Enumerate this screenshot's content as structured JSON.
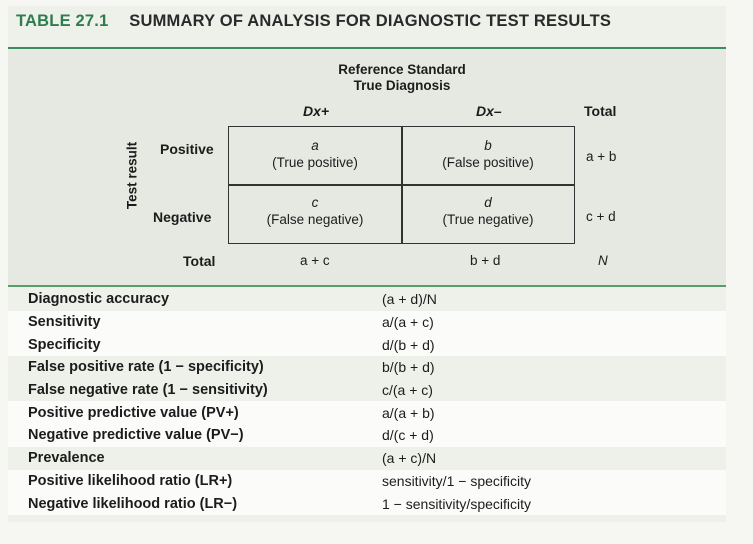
{
  "header": {
    "table_number": "TABLE 27.1",
    "title": "SUMMARY OF ANALYSIS FOR DIAGNOSTIC TEST RESULTS"
  },
  "contingency": {
    "reference_line1": "Reference Standard",
    "reference_line2": "True Diagnosis",
    "col_pos": "Dx+",
    "col_neg": "Dx–",
    "col_total": "Total",
    "side_label": "Test result",
    "row_pos": "Positive",
    "row_neg": "Negative",
    "row_total": "Total",
    "cells": {
      "a": {
        "letter": "a",
        "desc": "(True positive)"
      },
      "b": {
        "letter": "b",
        "desc": "(False positive)"
      },
      "c": {
        "letter": "c",
        "desc": "(False negative)"
      },
      "d": {
        "letter": "d",
        "desc": "(True negative)"
      }
    },
    "row_totals": {
      "pos": "a + b",
      "neg": "c + d"
    },
    "col_totals": {
      "pos": "a + c",
      "neg": "b + d",
      "all": "N"
    }
  },
  "measures": [
    {
      "name": "Diagnostic accuracy",
      "formula": "(a + d)/N"
    },
    {
      "name": "Sensitivity",
      "formula": "a/(a + c)"
    },
    {
      "name": "Specificity",
      "formula": "d/(b + d)"
    },
    {
      "name": "False positive rate (1 − specificity)",
      "formula": "b/(b + d)"
    },
    {
      "name": "False negative rate (1 − sensitivity)",
      "formula": "c/(a + c)"
    },
    {
      "name": "Positive predictive value (PV+)",
      "formula": "a/(a + b)"
    },
    {
      "name": "Negative predictive value (PV−)",
      "formula": "d/(c + d)"
    },
    {
      "name": "Prevalence",
      "formula": "(a + c)/N"
    },
    {
      "name": "Positive likelihood ratio (LR+)",
      "formula": "sensitivity/1 − specificity"
    },
    {
      "name": "Negative likelihood ratio (LR−)",
      "formula": "1 − sensitivity/specificity"
    }
  ]
}
